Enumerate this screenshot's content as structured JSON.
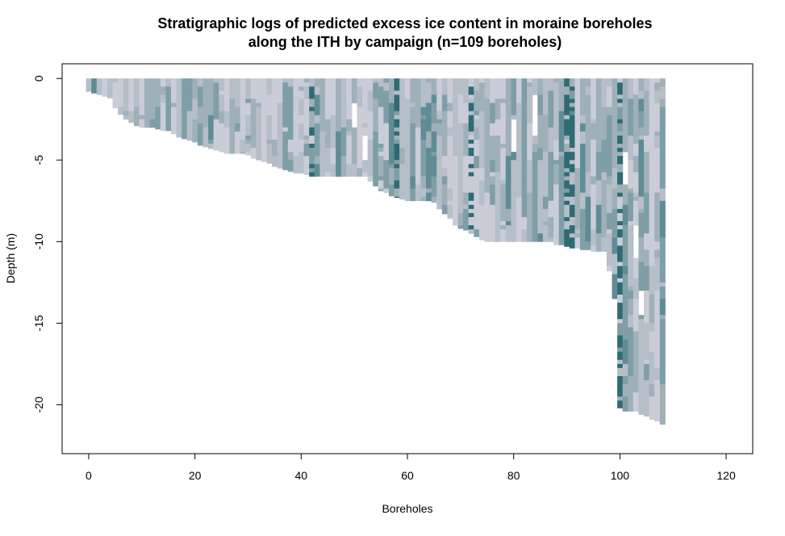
{
  "chart_data": {
    "type": "heatmap",
    "title": "Stratigraphic logs of predicted excess ice content in moraine boreholes",
    "subtitle": "along the ITH by campaign (n=109 boreholes)",
    "xlabel": "Boreholes",
    "ylabel": "Depth (m)",
    "xlim": [
      -5,
      125
    ],
    "ylim": [
      -23,
      0.9
    ],
    "x_ticks": [
      0,
      20,
      40,
      60,
      80,
      100,
      120
    ],
    "y_ticks": [
      0,
      -5,
      -10,
      -15,
      -20
    ],
    "x_tick_labels": [
      "0",
      "20",
      "40",
      "60",
      "80",
      "100",
      "120"
    ],
    "y_tick_labels": [
      "0",
      "-5",
      "-10",
      "-15",
      "-20"
    ],
    "n_boreholes": 109,
    "legend": "none",
    "grid": false,
    "palette": [
      "#cacdd8",
      "#b6bec8",
      "#9fb0b9",
      "#7f9ea6",
      "#5f8c95",
      "#2f6b73"
    ],
    "depth_profile": [
      [
        0,
        0.8
      ],
      [
        1,
        0.9
      ],
      [
        2,
        1.0
      ],
      [
        3,
        1.1
      ],
      [
        4,
        1.2
      ],
      [
        5,
        1.8
      ],
      [
        6,
        2.2
      ],
      [
        7,
        2.5
      ],
      [
        8,
        2.7
      ],
      [
        9,
        2.9
      ],
      [
        10,
        3.0
      ],
      [
        11,
        3.0
      ],
      [
        12,
        3.0
      ],
      [
        13,
        3.1
      ],
      [
        14,
        3.2
      ],
      [
        15,
        3.2
      ],
      [
        16,
        3.4
      ],
      [
        17,
        3.6
      ],
      [
        18,
        3.7
      ],
      [
        19,
        3.8
      ],
      [
        20,
        3.9
      ],
      [
        21,
        4.1
      ],
      [
        22,
        4.2
      ],
      [
        23,
        4.3
      ],
      [
        24,
        4.4
      ],
      [
        25,
        4.5
      ],
      [
        26,
        4.6
      ],
      [
        27,
        4.6
      ],
      [
        28,
        4.6
      ],
      [
        29,
        4.6
      ],
      [
        30,
        4.7
      ],
      [
        31,
        4.9
      ],
      [
        32,
        5.0
      ],
      [
        33,
        5.1
      ],
      [
        34,
        5.2
      ],
      [
        35,
        5.4
      ],
      [
        36,
        5.5
      ],
      [
        37,
        5.6
      ],
      [
        38,
        5.7
      ],
      [
        39,
        5.8
      ],
      [
        40,
        5.8
      ],
      [
        41,
        5.9
      ],
      [
        42,
        6.0
      ],
      [
        43,
        6.0
      ],
      [
        44,
        6.0
      ],
      [
        45,
        6.0
      ],
      [
        46,
        6.0
      ],
      [
        47,
        6.0
      ],
      [
        48,
        6.0
      ],
      [
        49,
        6.0
      ],
      [
        50,
        6.0
      ],
      [
        51,
        6.0
      ],
      [
        52,
        6.0
      ],
      [
        53,
        6.3
      ],
      [
        54,
        6.6
      ],
      [
        55,
        6.9
      ],
      [
        56,
        7.0
      ],
      [
        57,
        7.2
      ],
      [
        58,
        7.3
      ],
      [
        59,
        7.4
      ],
      [
        60,
        7.5
      ],
      [
        61,
        7.5
      ],
      [
        62,
        7.5
      ],
      [
        63,
        7.5
      ],
      [
        64,
        7.5
      ],
      [
        65,
        7.6
      ],
      [
        66,
        8.0
      ],
      [
        67,
        8.3
      ],
      [
        68,
        8.6
      ],
      [
        69,
        9.0
      ],
      [
        70,
        9.2
      ],
      [
        71,
        9.3
      ],
      [
        72,
        9.5
      ],
      [
        73,
        9.7
      ],
      [
        74,
        9.9
      ],
      [
        75,
        10.0
      ],
      [
        76,
        10.0
      ],
      [
        77,
        10.0
      ],
      [
        78,
        10.0
      ],
      [
        79,
        10.0
      ],
      [
        80,
        10.0
      ],
      [
        81,
        10.0
      ],
      [
        82,
        10.0
      ],
      [
        83,
        10.0
      ],
      [
        84,
        10.0
      ],
      [
        85,
        10.0
      ],
      [
        86,
        10.0
      ],
      [
        87,
        10.0
      ],
      [
        88,
        10.2
      ],
      [
        89,
        10.2
      ],
      [
        90,
        10.3
      ],
      [
        91,
        10.4
      ],
      [
        92,
        10.4
      ],
      [
        93,
        10.5
      ],
      [
        94,
        10.5
      ],
      [
        95,
        10.6
      ],
      [
        96,
        10.6
      ],
      [
        97,
        10.6
      ],
      [
        98,
        11.8
      ],
      [
        99,
        13.5
      ],
      [
        100,
        20.2
      ],
      [
        101,
        20.4
      ],
      [
        102,
        20.4
      ],
      [
        103,
        20.4
      ],
      [
        104,
        20.6
      ],
      [
        105,
        20.7
      ],
      [
        106,
        20.9
      ],
      [
        107,
        21.0
      ],
      [
        108,
        21.2
      ]
    ],
    "dark_columns": [
      42,
      58,
      72,
      90,
      91,
      100
    ],
    "white_gaps": [
      [
        50,
        1.5,
        3.0
      ],
      [
        52,
        3.5,
        5.0
      ],
      [
        80,
        2.5,
        4.5
      ],
      [
        84,
        1.0,
        3.5
      ],
      [
        101,
        4.5,
        6.5
      ],
      [
        104,
        13.0,
        14.5
      ],
      [
        103,
        9.0,
        11.0
      ]
    ]
  }
}
